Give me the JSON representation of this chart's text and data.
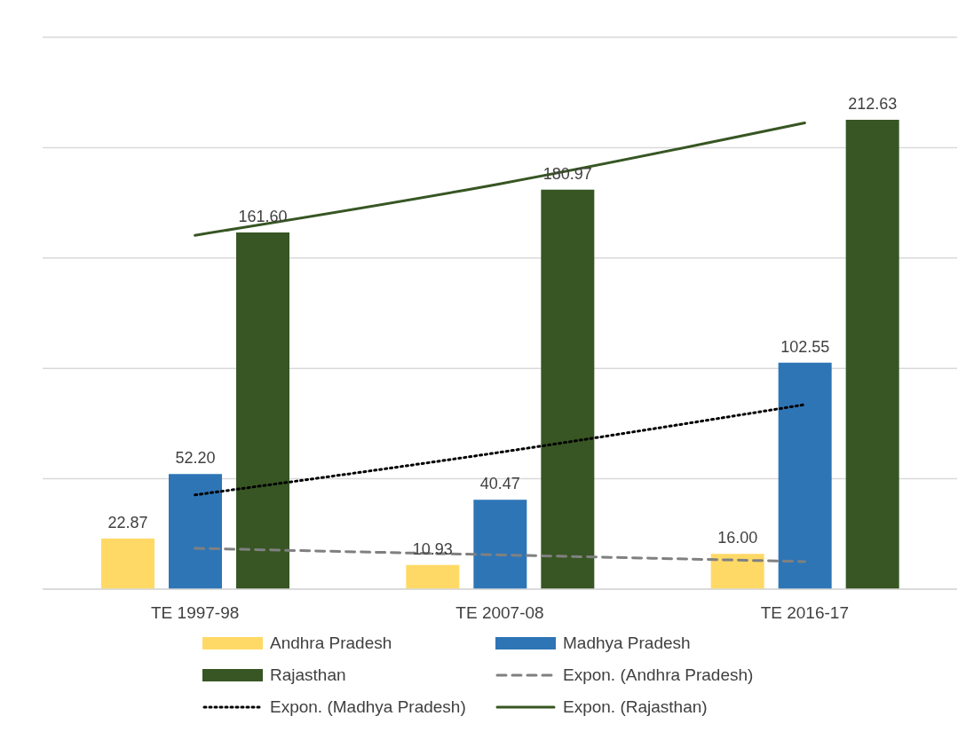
{
  "chart_data": {
    "type": "bar",
    "categories": [
      "TE 1997-98",
      "TE 2007-08",
      "TE 2016-17"
    ],
    "series": [
      {
        "name": "Andhra Pradesh",
        "color": "#ffd966",
        "values": [
          22.87,
          10.93,
          16.0
        ],
        "value_labels": [
          "22.87",
          "10.93",
          "16.00"
        ]
      },
      {
        "name": "Madhya Pradesh",
        "color": "#2e75b6",
        "values": [
          52.2,
          40.47,
          102.55
        ],
        "value_labels": [
          "52.20",
          "40.47",
          "102.55"
        ]
      },
      {
        "name": "Rajasthan",
        "color": "#375623",
        "values": [
          161.6,
          180.97,
          212.63
        ],
        "value_labels": [
          "161.60",
          "180.97",
          "212.63"
        ]
      },
      {
        "name": "Expon. (Andhra Pradesh)",
        "type": "line",
        "color": "#808080",
        "line_style": "dashed",
        "values": [
          18.5,
          15.5,
          12.5
        ]
      },
      {
        "name": "Expon. (Madhya Pradesh)",
        "type": "line",
        "color": "#000000",
        "line_style": "dotted",
        "values": [
          42.7,
          62,
          83.6
        ]
      },
      {
        "name": "Expon. (Rajasthan)",
        "type": "line",
        "color": "#375623",
        "line_style": "solid",
        "values": [
          160.3,
          183.6,
          211.2
        ]
      }
    ],
    "ylim": [
      0,
      250
    ],
    "yticks": [
      {
        "value": 0,
        "label": null
      },
      {
        "value": 50,
        "label": null
      },
      {
        "value": 100,
        "label": null
      },
      {
        "value": 150,
        "label": null
      },
      {
        "value": 200,
        "label": null
      },
      {
        "value": 250,
        "label": null
      }
    ],
    "tick_labels": "x",
    "grid": "y",
    "legend": "bottom"
  }
}
